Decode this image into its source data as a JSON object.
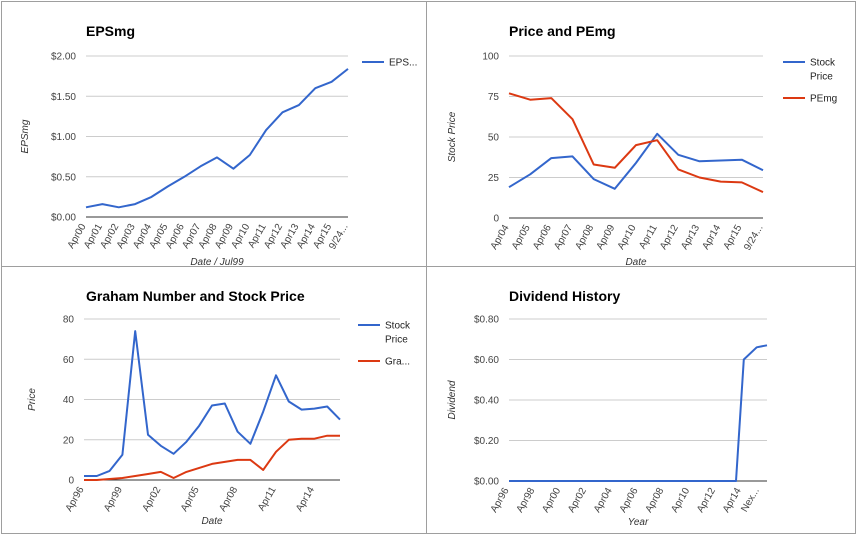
{
  "chart_data": [
    {
      "type": "line",
      "title": "EPSmg",
      "xlabel": "Date / Jul99",
      "ylabel": "EPSmg",
      "ylim": [
        0,
        2
      ],
      "yticks": [
        "$0.00",
        "$0.50",
        "$1.00",
        "$1.50",
        "$2.00"
      ],
      "ytick_values": [
        0,
        0.5,
        1,
        1.5,
        2
      ],
      "categories": [
        "Apr00",
        "Apr01",
        "Apr02",
        "Apr03",
        "Apr04",
        "Apr05",
        "Apr06",
        "Apr07",
        "Apr08",
        "Apr09",
        "Apr10",
        "Apr11",
        "Apr12",
        "Apr13",
        "Apr14",
        "Apr15",
        "9/24..."
      ],
      "legend_position": "right",
      "series": [
        {
          "name": "EPS...",
          "color": "#3366cc",
          "x": [
            0,
            1,
            2,
            3,
            4,
            5,
            6,
            7,
            8,
            9,
            10,
            11,
            12,
            13,
            14,
            15,
            16
          ],
          "values": [
            0.12,
            0.16,
            0.12,
            0.16,
            0.25,
            0.38,
            0.5,
            0.63,
            0.74,
            0.6,
            0.77,
            1.08,
            1.3,
            1.39,
            1.6,
            1.68,
            1.84
          ]
        }
      ]
    },
    {
      "type": "line",
      "title": "Price and PEmg",
      "xlabel": "Date",
      "ylabel": "Stock Price",
      "ylim": [
        0,
        100
      ],
      "yticks": [
        "0",
        "25",
        "50",
        "75",
        "100"
      ],
      "ytick_values": [
        0,
        25,
        50,
        75,
        100
      ],
      "categories": [
        "Apr04",
        "Apr05",
        "Apr06",
        "Apr07",
        "Apr08",
        "Apr09",
        "Apr10",
        "Apr11",
        "Apr12",
        "Apr13",
        "Apr14",
        "Apr15",
        "9/24..."
      ],
      "legend_position": "right",
      "series": [
        {
          "name_lines": [
            "Stock",
            "Price"
          ],
          "color": "#3366cc",
          "x": [
            0,
            1,
            2,
            3,
            4,
            5,
            6,
            7,
            8,
            9,
            10,
            11,
            12
          ],
          "values": [
            19,
            27,
            37,
            38,
            24,
            18,
            34,
            52,
            39,
            35,
            35.5,
            36,
            29.5
          ]
        },
        {
          "name_lines": [
            "PEmg"
          ],
          "color": "#dc3912",
          "x": [
            0,
            1,
            2,
            3,
            4,
            5,
            6,
            7,
            8,
            9,
            10,
            11,
            12
          ],
          "values": [
            77,
            73,
            74,
            61,
            33,
            31,
            45,
            48,
            30,
            25,
            22.5,
            22,
            16
          ]
        }
      ]
    },
    {
      "type": "line",
      "title": "Graham Number and Stock Price",
      "xlabel": "Date",
      "ylabel": "Price",
      "ylim": [
        0,
        80
      ],
      "yticks": [
        "0",
        "20",
        "40",
        "60",
        "80"
      ],
      "ytick_values": [
        0,
        20,
        40,
        60,
        80
      ],
      "categories": [
        "Apr96",
        "Apr99",
        "Apr02",
        "Apr05",
        "Apr08",
        "Apr11",
        "Apr14"
      ],
      "category_x": [
        0,
        3,
        6,
        9,
        12,
        15,
        18
      ],
      "xmax": 20,
      "legend_position": "right",
      "series": [
        {
          "name_lines": [
            "Stock",
            "Price"
          ],
          "color": "#3366cc",
          "x": [
            0,
            1,
            2,
            3,
            4,
            5,
            6,
            7,
            8,
            9,
            10,
            11,
            12,
            13,
            14,
            15,
            16,
            17,
            18,
            19,
            20
          ],
          "values": [
            2,
            2,
            4.5,
            12.5,
            74,
            22.5,
            17,
            13,
            19,
            27,
            37,
            38,
            24,
            18,
            34,
            52,
            39,
            35,
            35.5,
            36.5,
            30
          ]
        },
        {
          "name_lines": [
            "Gra..."
          ],
          "color": "#dc3912",
          "x": [
            0,
            1,
            2,
            3,
            4,
            5,
            6,
            7,
            8,
            9,
            10,
            11,
            12,
            13,
            14,
            15,
            16,
            17,
            18,
            19,
            20
          ],
          "values": [
            0,
            0,
            0.5,
            1,
            2,
            3,
            4,
            1,
            4,
            6,
            8,
            9,
            10,
            10,
            5,
            14,
            20,
            20.5,
            20.5,
            22,
            22
          ]
        }
      ]
    },
    {
      "type": "line",
      "title": "Dividend History",
      "xlabel": "Year",
      "ylabel": "Dividend",
      "ylim": [
        0,
        0.8
      ],
      "yticks": [
        "$0.00",
        "$0.20",
        "$0.40",
        "$0.60",
        "$0.80"
      ],
      "ytick_values": [
        0,
        0.2,
        0.4,
        0.6,
        0.8
      ],
      "categories": [
        "Apr96",
        "Apr98",
        "Apr00",
        "Apr02",
        "Apr04",
        "Apr06",
        "Apr08",
        "Apr10",
        "Apr12",
        "Apr14",
        "Nex..."
      ],
      "category_x": [
        0,
        2,
        4,
        6,
        8,
        10,
        12,
        14,
        16,
        18,
        19.4
      ],
      "xmax": 20,
      "series": [
        {
          "color": "#3366cc",
          "x": [
            0,
            17.6,
            18.2,
            19.2,
            20
          ],
          "values": [
            0,
            0,
            0.6,
            0.66,
            0.67
          ]
        }
      ]
    }
  ]
}
